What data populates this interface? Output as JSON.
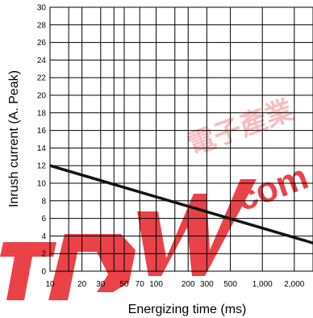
{
  "chart_data": {
    "type": "line",
    "title": "",
    "xlabel": "Energizing time (ms)",
    "ylabel": "Inrush current (A. Peak)",
    "x_scale": "log",
    "xlim": [
      10,
      3000
    ],
    "ylim": [
      0,
      30
    ],
    "grid": true,
    "x_gridlines": [
      10,
      15,
      20,
      30,
      40,
      50,
      70,
      100,
      150,
      200,
      300,
      500,
      1000,
      2000,
      3000
    ],
    "x_ticks": [
      {
        "value": 10,
        "label": "10"
      },
      {
        "value": 20,
        "label": "20"
      },
      {
        "value": 30,
        "label": "30"
      },
      {
        "value": 50,
        "label": "50"
      },
      {
        "value": 70,
        "label": "70"
      },
      {
        "value": 100,
        "label": "100"
      },
      {
        "value": 200,
        "label": "200"
      },
      {
        "value": 300,
        "label": "300"
      },
      {
        "value": 500,
        "label": "500"
      },
      {
        "value": 1000,
        "label": "1,000"
      },
      {
        "value": 2000,
        "label": "2,000"
      }
    ],
    "y_ticks": [
      "0",
      "2",
      "4",
      "6",
      "8",
      "10",
      "12",
      "14",
      "16",
      "18",
      "20",
      "22",
      "24",
      "26",
      "28",
      "30"
    ],
    "series": [
      {
        "x": [
          10,
          3000
        ],
        "y": [
          12,
          3.2
        ],
        "color": "#111111"
      }
    ]
  },
  "watermark": {
    "latin": "com",
    "cjk": "電子產業",
    "color": "#e8202a"
  }
}
